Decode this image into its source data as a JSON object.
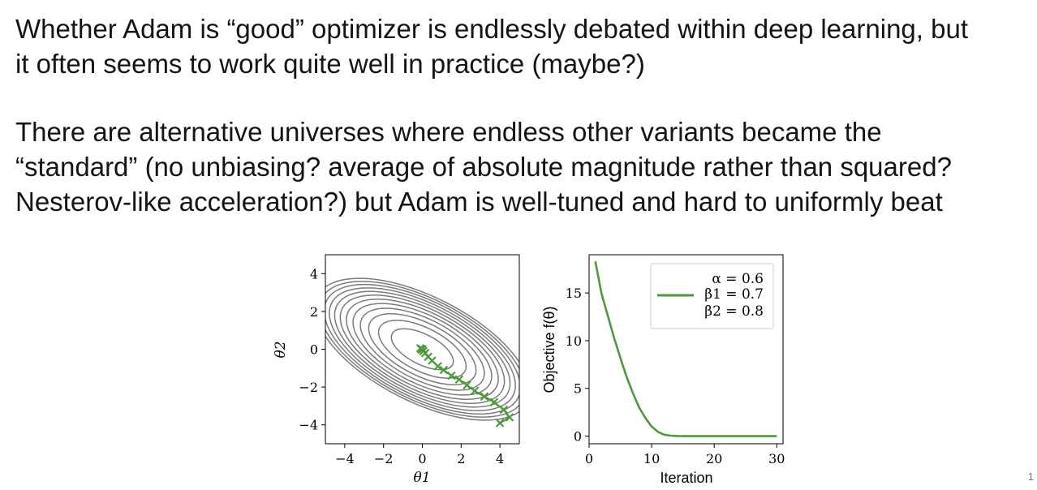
{
  "slide": {
    "paragraph1": [
      "Whether Adam is “good” optimizer is endlessly debated within deep learning, but",
      "it often seems to work quite well in practice (maybe?)"
    ],
    "paragraph2": [
      "There are alternative universes where endless other variants became the",
      "“standard” (no unbiasing? average of absolute magnitude rather than squared?",
      "Nesterov-like acceleration?) but Adam is well-tuned and hard to uniformly beat"
    ],
    "page_number": "1"
  },
  "colors": {
    "series": "#4c9a3a",
    "contour": "#7b7b7b",
    "axis": "#000000"
  },
  "chart_data": [
    {
      "type": "scatter",
      "subtype": "contour-with-trajectory",
      "xlabel": "θ1",
      "ylabel": "θ2",
      "xlim": [
        -5,
        5
      ],
      "ylim": [
        -5,
        5
      ],
      "xticks": [
        -4,
        -2,
        0,
        2,
        4
      ],
      "yticks": [
        4,
        2,
        0,
        -2,
        -4
      ],
      "xtick_labels": [
        "−4",
        "−2",
        "0",
        "2",
        "4"
      ],
      "ytick_labels": [
        "4",
        "2",
        "0",
        "−2",
        "−4"
      ],
      "grid": false,
      "contour": {
        "center": [
          0,
          0
        ],
        "levels": 12
      },
      "series": [
        {
          "x": [
            4.0,
            4.5,
            4.2,
            3.7,
            3.2,
            2.7,
            2.3,
            1.9,
            1.5,
            1.1,
            0.8,
            0.5,
            0.3,
            0.15,
            0.05,
            -0.05,
            -0.1,
            -0.05,
            0.0
          ],
          "y": [
            -3.9,
            -3.6,
            -3.2,
            -2.8,
            -2.5,
            -2.2,
            -1.9,
            -1.6,
            -1.4,
            -1.1,
            -0.9,
            -0.6,
            -0.4,
            -0.2,
            -0.1,
            0.0,
            0.05,
            0.0,
            0.0
          ]
        }
      ]
    },
    {
      "type": "line",
      "xlabel": "Iteration",
      "ylabel": "Objective f(θ)",
      "xlim": [
        0,
        31
      ],
      "ylim": [
        -0.8,
        19
      ],
      "xticks": [
        0,
        10,
        20,
        30
      ],
      "yticks": [
        0,
        5,
        10,
        15
      ],
      "xtick_labels": [
        "0",
        "10",
        "20",
        "30"
      ],
      "ytick_labels": [
        "0",
        "5",
        "10",
        "15"
      ],
      "grid": false,
      "legend_position": "top-right",
      "legend": [
        "α = 0.6",
        "β1 = 0.7",
        "β2 = 0.8"
      ],
      "series": [
        {
          "x": [
            1,
            2,
            3,
            4,
            5,
            6,
            7,
            8,
            9,
            10,
            11,
            12,
            13,
            14,
            15,
            16,
            18,
            20,
            22,
            24,
            26,
            28,
            30
          ],
          "y": [
            18.3,
            14.9,
            12.6,
            10.3,
            8.2,
            6.2,
            4.5,
            3.0,
            1.9,
            1.0,
            0.45,
            0.15,
            0.05,
            0.02,
            0.01,
            0.0,
            0.0,
            0.0,
            0.0,
            0.0,
            0.0,
            0.0,
            0.0
          ]
        }
      ]
    }
  ]
}
